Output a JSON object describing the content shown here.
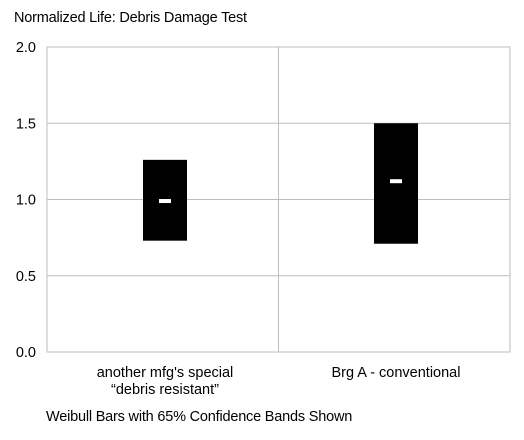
{
  "chart_data": {
    "type": "weibull-range-bar",
    "title": "Normalized Life: Debris Damage Test",
    "caption": "Weibull Bars with 65% Confidence Bands Shown",
    "ylim": [
      0.0,
      2.0
    ],
    "yticks": [
      "0.0",
      "0.5",
      "1.0",
      "1.5",
      "2.0"
    ],
    "grid": true,
    "categories": [
      [
        "another mfg's special",
        "“debris resistant”"
      ],
      [
        "Brg A - conventional"
      ]
    ],
    "series": [
      {
        "low": [
          0.73,
          0.71
        ],
        "high": [
          1.26,
          1.5
        ],
        "mid": [
          0.99,
          1.12
        ]
      }
    ],
    "colors": {
      "bar": "#000000",
      "mid_marker": "#ffffff",
      "grid": "#bdbdbd"
    }
  }
}
